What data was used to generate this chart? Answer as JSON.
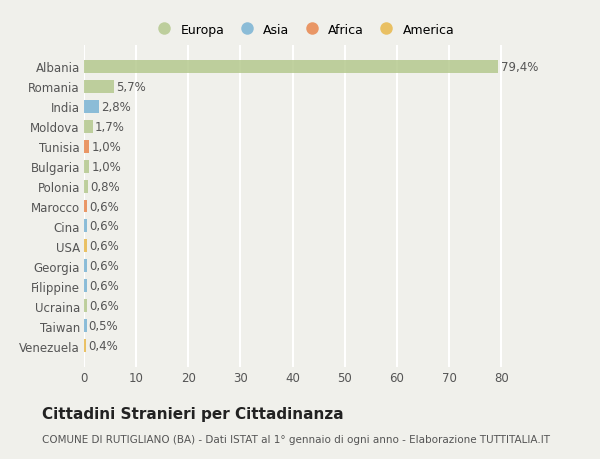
{
  "categories": [
    "Venezuela",
    "Taiwan",
    "Ucraina",
    "Filippine",
    "Georgia",
    "USA",
    "Cina",
    "Marocco",
    "Polonia",
    "Bulgaria",
    "Tunisia",
    "Moldova",
    "India",
    "Romania",
    "Albania"
  ],
  "values": [
    0.4,
    0.5,
    0.6,
    0.6,
    0.6,
    0.6,
    0.6,
    0.6,
    0.8,
    1.0,
    1.0,
    1.7,
    2.8,
    5.7,
    79.4
  ],
  "labels": [
    "0,4%",
    "0,5%",
    "0,6%",
    "0,6%",
    "0,6%",
    "0,6%",
    "0,6%",
    "0,6%",
    "0,8%",
    "1,0%",
    "1,0%",
    "1,7%",
    "2,8%",
    "5,7%",
    "79,4%"
  ],
  "colors": [
    "#e8b84b",
    "#7ab3d4",
    "#b5c98e",
    "#7ab3d4",
    "#7ab3d4",
    "#e8b84b",
    "#7ab3d4",
    "#e8874e",
    "#b5c98e",
    "#b5c98e",
    "#e8874e",
    "#b5c98e",
    "#7ab3d4",
    "#b5c98e",
    "#b5c98e"
  ],
  "legend_labels": [
    "Europa",
    "Asia",
    "Africa",
    "America"
  ],
  "legend_colors": [
    "#b5c98e",
    "#7ab3d4",
    "#e8874e",
    "#e8b84b"
  ],
  "title": "Cittadini Stranieri per Cittadinanza",
  "subtitle": "COMUNE DI RUTIGLIANO (BA) - Dati ISTAT al 1° gennaio di ogni anno - Elaborazione TUTTITALIA.IT",
  "xlim": [
    0,
    84
  ],
  "xticks": [
    0,
    10,
    20,
    30,
    40,
    50,
    60,
    70,
    80
  ],
  "bg_color": "#f0f0eb",
  "grid_color": "#ffffff",
  "bar_height": 0.65,
  "title_fontsize": 11,
  "subtitle_fontsize": 7.5,
  "tick_fontsize": 8.5,
  "label_fontsize": 8.5,
  "legend_fontsize": 9
}
